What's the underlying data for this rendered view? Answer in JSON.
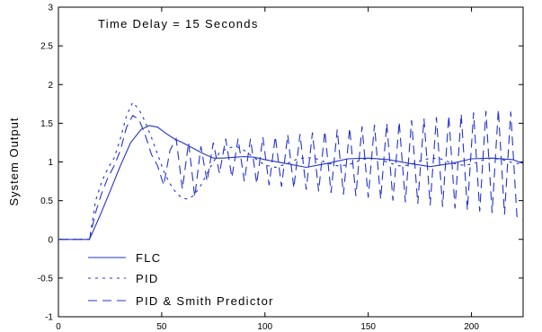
{
  "chart_data": {
    "type": "line",
    "title": "",
    "annotation": "Time Delay = 15 Seconds",
    "xlabel": "",
    "ylabel": "System Output",
    "xlim": [
      0,
      225
    ],
    "ylim": [
      -1,
      3
    ],
    "x_ticks": [
      0,
      50,
      100,
      150,
      200
    ],
    "y_ticks": [
      -1,
      -0.5,
      0,
      0.5,
      1,
      1.5,
      2,
      2.5,
      3
    ],
    "y_tick_labels": [
      "-1",
      "-0.5",
      "0",
      "0.5",
      "1",
      "1.5",
      "2",
      "2.5",
      "3"
    ],
    "grid": false,
    "legend_position": "bottom-left",
    "line_color": "#2233cc",
    "series": [
      {
        "name": "FLC",
        "style": "solid",
        "x": [
          0,
          15,
          20,
          25,
          30,
          35,
          40,
          44,
          48,
          52,
          56,
          60,
          65,
          70,
          75,
          80,
          85,
          90,
          95,
          100,
          110,
          120,
          130,
          140,
          150,
          160,
          170,
          180,
          190,
          200,
          210,
          220,
          225
        ],
        "y": [
          0,
          0,
          0.3,
          0.62,
          0.95,
          1.25,
          1.42,
          1.47,
          1.45,
          1.37,
          1.3,
          1.25,
          1.18,
          1.11,
          1.05,
          1.05,
          1.06,
          1.07,
          1.06,
          1.03,
          0.98,
          0.93,
          0.98,
          1.04,
          1.05,
          1.03,
          0.98,
          0.94,
          0.98,
          1.04,
          1.05,
          1.03,
          0.98
        ]
      },
      {
        "name": "PID",
        "style": "dotted",
        "x": [
          0,
          15,
          18,
          21,
          24,
          27,
          30,
          33,
          36,
          39,
          42,
          45,
          48,
          51,
          54,
          57,
          60,
          63,
          66,
          69,
          72,
          75,
          78,
          82,
          86,
          90,
          95,
          100,
          105,
          110,
          115,
          120,
          125,
          130,
          135,
          140,
          145,
          150,
          155,
          160,
          165,
          170,
          175,
          180,
          185,
          190,
          195,
          200,
          205,
          210,
          215,
          220,
          225
        ],
        "y": [
          0,
          0,
          0.5,
          0.75,
          0.92,
          1.05,
          1.3,
          1.6,
          1.77,
          1.68,
          1.52,
          1.32,
          1.1,
          0.88,
          0.72,
          0.6,
          0.53,
          0.52,
          0.58,
          0.7,
          0.85,
          1.0,
          1.12,
          1.18,
          1.2,
          1.15,
          1.05,
          0.96,
          0.93,
          0.97,
          1.03,
          1.06,
          1.04,
          0.99,
          0.95,
          0.96,
          1.01,
          1.05,
          1.04,
          0.99,
          0.95,
          0.96,
          1.01,
          1.05,
          1.04,
          0.99,
          0.96,
          0.97,
          1.02,
          1.05,
          1.03,
          0.99,
          0.97
        ]
      },
      {
        "name": "PID & Smith Predictor",
        "style": "dashed",
        "x": [
          0,
          15,
          18,
          21,
          24,
          27,
          30,
          33,
          36,
          39,
          42,
          45,
          48,
          51,
          54,
          57,
          60,
          63,
          66,
          69,
          72,
          75,
          78,
          81,
          84,
          87,
          90,
          93,
          96,
          99,
          102,
          105,
          108,
          111,
          114,
          117,
          120,
          123,
          126,
          129,
          132,
          135,
          138,
          141,
          144,
          147,
          150,
          153,
          156,
          159,
          162,
          165,
          168,
          171,
          174,
          177,
          180,
          183,
          186,
          189,
          192,
          195,
          198,
          201,
          204,
          207,
          210,
          213,
          216,
          219,
          222,
          225
        ],
        "y": [
          0,
          0,
          0.35,
          0.6,
          0.8,
          0.95,
          1.15,
          1.45,
          1.6,
          1.55,
          1.35,
          1.1,
          0.95,
          0.7,
          1.15,
          1.3,
          0.65,
          1.25,
          0.55,
          1.2,
          0.75,
          1.25,
          0.85,
          1.3,
          0.8,
          1.3,
          0.75,
          1.3,
          0.72,
          1.32,
          0.7,
          1.33,
          0.68,
          1.35,
          0.66,
          1.36,
          0.64,
          1.38,
          0.62,
          1.4,
          0.6,
          1.42,
          0.58,
          1.44,
          0.56,
          1.46,
          0.54,
          1.48,
          0.52,
          1.5,
          0.5,
          1.52,
          0.48,
          1.54,
          0.46,
          1.56,
          0.44,
          1.58,
          0.42,
          1.6,
          0.4,
          1.62,
          0.38,
          1.64,
          0.36,
          1.66,
          0.34,
          1.68,
          0.32,
          1.65,
          0.3,
          0.25
        ]
      }
    ]
  }
}
